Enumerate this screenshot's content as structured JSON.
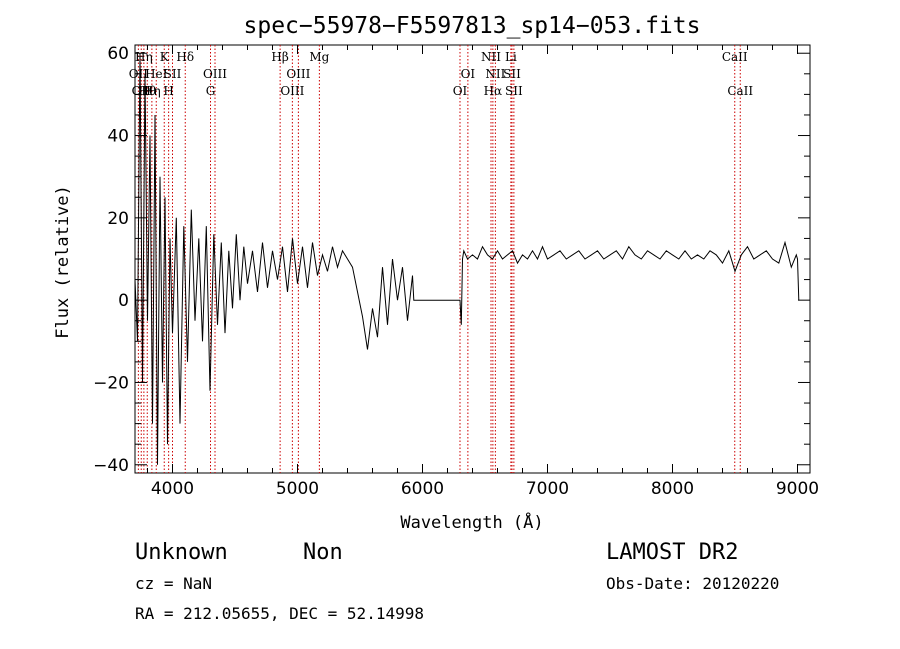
{
  "chart_data": {
    "type": "line",
    "title": "spec−55978−F5597813_sp14−053.fits",
    "xlabel": "Wavelength (Å)",
    "ylabel": "Flux (relative)",
    "xlim": [
      3700,
      9100
    ],
    "ylim": [
      -42,
      62
    ],
    "xticks": [
      4000,
      5000,
      6000,
      7000,
      8000,
      9000
    ],
    "xtick_labels": [
      "4000",
      "5000",
      "6000",
      "7000",
      "8000",
      "9000"
    ],
    "yticks": [
      -40,
      -20,
      0,
      20,
      40,
      60
    ],
    "ytick_labels": [
      "−40",
      "−20",
      "0",
      "20",
      "40",
      "60"
    ],
    "grid": false,
    "series": [
      {
        "x": [
          3700,
          3720,
          3740,
          3760,
          3780,
          3800,
          3820,
          3840,
          3860,
          3880,
          3900,
          3920,
          3940,
          3960,
          3980,
          4000,
          4030,
          4060,
          4090,
          4120,
          4150,
          4180,
          4210,
          4240,
          4270,
          4300,
          4330,
          4360,
          4390,
          4420,
          4450,
          4480,
          4510,
          4540,
          4570,
          4600,
          4640,
          4680,
          4720,
          4760,
          4800,
          4840,
          4880,
          4920,
          4960,
          5000,
          5040,
          5080,
          5120,
          5160,
          5200,
          5240,
          5280,
          5320,
          5360,
          5400,
          5440,
          5480,
          5520,
          5560,
          5600,
          5640,
          5680,
          5720,
          5760,
          5800,
          5840,
          5880,
          5920,
          5930,
          6000,
          6100,
          6200,
          6300,
          6310,
          6320,
          6330,
          6360,
          6400,
          6440,
          6480,
          6520,
          6560,
          6600,
          6640,
          6680,
          6720,
          6760,
          6800,
          6840,
          6880,
          6920,
          6960,
          7000,
          7050,
          7100,
          7150,
          7200,
          7250,
          7300,
          7350,
          7400,
          7450,
          7500,
          7550,
          7600,
          7650,
          7700,
          7750,
          7800,
          7850,
          7900,
          7950,
          8000,
          8050,
          8100,
          8150,
          8200,
          8250,
          8300,
          8350,
          8400,
          8450,
          8500,
          8550,
          8600,
          8650,
          8700,
          8750,
          8800,
          8850,
          8900,
          8950,
          8990,
          9000,
          9010
        ],
        "y": [
          5,
          -10,
          60,
          -20,
          55,
          -5,
          40,
          -30,
          45,
          -40,
          30,
          -20,
          25,
          -35,
          15,
          -8,
          20,
          -30,
          18,
          -15,
          22,
          -5,
          15,
          -10,
          18,
          -22,
          16,
          -6,
          14,
          -8,
          12,
          -2,
          16,
          0,
          13,
          4,
          12,
          2,
          14,
          3,
          12,
          5,
          13,
          2,
          15,
          4,
          13,
          3,
          14,
          6,
          11,
          7,
          13,
          8,
          12,
          10,
          8,
          2,
          -4,
          -12,
          -2,
          -9,
          8,
          -6,
          10,
          0,
          8,
          -5,
          6,
          0,
          0,
          0,
          0,
          0,
          -6,
          10,
          12,
          10,
          11,
          10,
          13,
          11,
          10,
          12,
          10,
          11,
          12,
          9,
          11,
          10,
          12,
          10,
          13,
          10,
          11,
          12,
          10,
          11,
          12,
          10,
          11,
          12,
          10,
          11,
          12,
          10,
          13,
          11,
          10,
          12,
          11,
          10,
          12,
          11,
          10,
          12,
          10,
          11,
          10,
          12,
          11,
          9,
          12,
          7,
          11,
          13,
          10,
          11,
          12,
          10,
          9,
          14,
          8,
          11,
          10,
          0
        ]
      }
    ],
    "lines": [
      {
        "x": 3727,
        "label": "OII",
        "row": 2
      },
      {
        "x": 3750,
        "label": "OII",
        "row": 3
      },
      {
        "x": 3771,
        "label": "Hη",
        "row": 1
      },
      {
        "x": 3798,
        "label": "Hθ",
        "row": 3
      },
      {
        "x": 3835,
        "label": "Hη",
        "row": 3
      },
      {
        "x": 3870,
        "label": "HeI",
        "row": 2
      },
      {
        "x": 3934,
        "label": "K",
        "row": 1
      },
      {
        "x": 3969,
        "label": "H",
        "row": 3
      },
      {
        "x": 4000,
        "label": "SII",
        "row": 2
      },
      {
        "x": 4102,
        "label": "Hδ",
        "row": 1
      },
      {
        "x": 4304,
        "label": "G",
        "row": 3
      },
      {
        "x": 4340,
        "label": "OIII",
        "row": 2
      },
      {
        "x": 4861,
        "label": "Hβ",
        "row": 1
      },
      {
        "x": 4959,
        "label": "OIII",
        "row": 3
      },
      {
        "x": 5007,
        "label": "OIII",
        "row": 2
      },
      {
        "x": 5175,
        "label": "Mg",
        "row": 1
      },
      {
        "x": 6300,
        "label": "OI",
        "row": 3
      },
      {
        "x": 6363,
        "label": "OI",
        "row": 2
      },
      {
        "x": 6548,
        "label": "NII",
        "row": 1
      },
      {
        "x": 6563,
        "label": "Hα",
        "row": 3
      },
      {
        "x": 6583,
        "label": "NII",
        "row": 2
      },
      {
        "x": 6707,
        "label": "Li",
        "row": 1
      },
      {
        "x": 6716,
        "label": "SII",
        "row": 2
      },
      {
        "x": 6731,
        "label": "SII",
        "row": 3
      },
      {
        "x": 8498,
        "label": "CaII",
        "row": 1
      },
      {
        "x": 8542,
        "label": "CaII",
        "row": 3
      }
    ],
    "line_color": "#cc0000"
  },
  "meta": {
    "class": "Unknown",
    "subclass": "Non",
    "survey": "LAMOST DR2",
    "cz": "cz = NaN",
    "obs_date": "Obs-Date: 20120220",
    "coords": "RA = 212.05655, DEC =  52.14998"
  }
}
